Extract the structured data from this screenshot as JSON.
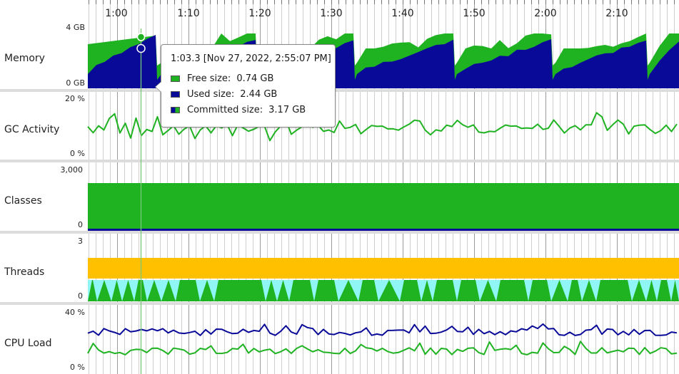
{
  "timeline": {
    "ticks": [
      "1:00",
      "1:10",
      "1:20",
      "1:30",
      "1:40",
      "1:50",
      "2:00",
      "2:10"
    ]
  },
  "panels": [
    {
      "id": "memory",
      "label": "Memory",
      "axis_top": "4 GB",
      "axis_bottom": "0 GB"
    },
    {
      "id": "gc",
      "label": "GC Activity",
      "axis_top": "20 %",
      "axis_bottom": "0 %"
    },
    {
      "id": "classes",
      "label": "Classes",
      "axis_top": "3,000",
      "axis_bottom": "0"
    },
    {
      "id": "threads",
      "label": "Threads",
      "axis_top": "3",
      "axis_bottom": "0"
    },
    {
      "id": "cpu",
      "label": "CPU Load",
      "axis_top": "40 %",
      "axis_bottom": "0 %"
    }
  ],
  "tooltip": {
    "title": "1:03.3 [Nov 27, 2022, 2:55:07 PM]",
    "free_label": "Free size:",
    "free_value": "0.74 GB",
    "used_label": "Used size:",
    "used_value": "2.44 GB",
    "committed_label": "Committed size:",
    "committed_value": "3.17 GB"
  },
  "colors": {
    "green": "#1fb322",
    "navy": "#0a0a99",
    "orange": "#ffc000",
    "cyan": "#8ff5f5",
    "cursor": "#78c878"
  }
}
